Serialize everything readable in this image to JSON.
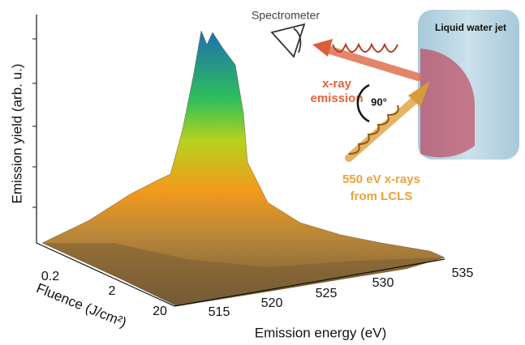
{
  "figure": {
    "y_axis_label": "Emission yield (arb. u.)",
    "fluence_axis": {
      "label": "Fluence (J/cm²)",
      "ticks": [
        0.2,
        2,
        20
      ]
    },
    "energy_axis": {
      "label": "Emission energy (eV)",
      "ticks": [
        515,
        520,
        525,
        530,
        535
      ]
    },
    "schematic": {
      "spectrometer": "Spectrometer",
      "emission": [
        "x-ray",
        "emission"
      ],
      "angle": "90°",
      "incident": [
        "550 eV x-rays",
        "from LCLS"
      ],
      "jet": "Liquid water jet"
    }
  }
}
